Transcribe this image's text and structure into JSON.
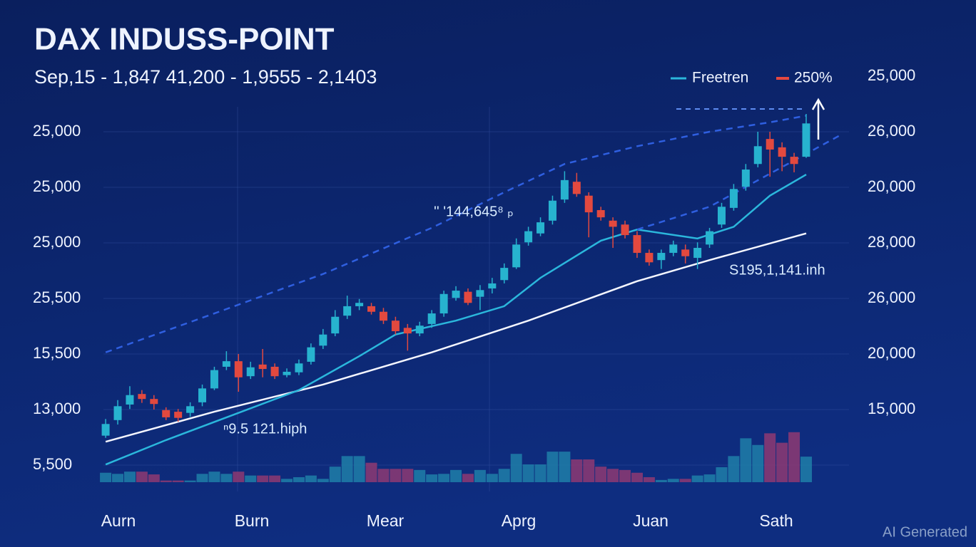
{
  "chart_data": {
    "type": "candlestick",
    "title": "DAX INDUSS-POINT",
    "subtitle": "Sep,15 - 1,847 41,200 - 1,9555 - 2,1403",
    "ylim": [
      -0.5,
      7
    ],
    "y2lim": [
      -0.5,
      7
    ],
    "xlim": [
      -0.3,
      61.25
    ],
    "yticks": [
      {
        "value": 6,
        "label": "25,000"
      },
      {
        "value": 5,
        "label": "25,000"
      },
      {
        "value": 4,
        "label": "25,000"
      },
      {
        "value": 3,
        "label": "25,500"
      },
      {
        "value": 2,
        "label": "15,500"
      },
      {
        "value": 1,
        "label": "13,000"
      },
      {
        "value": 0,
        "label": "5,500"
      }
    ],
    "y2ticks": [
      {
        "value": 7,
        "label": "25,000"
      },
      {
        "value": 6,
        "label": "26,000"
      },
      {
        "value": 5,
        "label": "20,000"
      },
      {
        "value": 4,
        "label": "28,000"
      },
      {
        "value": 3,
        "label": "26,000"
      },
      {
        "value": 2,
        "label": "20,000"
      },
      {
        "value": 1,
        "label": "15,000"
      }
    ],
    "grid": true,
    "x_labels": [
      "Aurn",
      "Burn",
      "Mear",
      "Aprg",
      "Juan",
      "Sath"
    ],
    "legend": [
      {
        "label": "Freetren",
        "color": "#2bb7dc"
      },
      {
        "label": "250%",
        "color": "#e5483f"
      }
    ],
    "up_color": "#27b3cf",
    "down_color": "#e2493f",
    "candles": {
      "open": [
        0.53,
        0.81,
        1.09,
        1.28,
        1.19,
        0.99,
        0.96,
        0.94,
        1.13,
        1.38,
        1.77,
        1.87,
        1.6,
        1.81,
        1.77,
        1.62,
        1.67,
        1.86,
        2.15,
        2.37,
        2.69,
        2.86,
        2.86,
        2.76,
        2.6,
        2.47,
        2.37,
        2.54,
        2.73,
        3.01,
        3.12,
        3.03,
        3.18,
        3.33,
        3.56,
        4.01,
        4.17,
        4.4,
        4.78,
        5.1,
        4.85,
        4.59,
        4.4,
        4.33,
        4.14,
        3.82,
        3.69,
        3.82,
        3.88,
        3.73,
        3.97,
        4.33,
        4.63,
        5.01,
        5.42,
        5.87,
        5.72,
        5.55,
        5.55
      ],
      "high": [
        0.83,
        1.17,
        1.42,
        1.35,
        1.26,
        1.04,
        1.01,
        1.13,
        1.45,
        1.77,
        2.05,
        2.0,
        1.86,
        2.09,
        1.83,
        1.74,
        1.9,
        2.19,
        2.45,
        2.79,
        3.05,
        2.99,
        2.92,
        2.83,
        2.67,
        2.54,
        2.58,
        2.79,
        3.14,
        3.22,
        3.18,
        3.24,
        3.37,
        3.63,
        4.08,
        4.29,
        4.46,
        4.85,
        5.29,
        5.26,
        4.91,
        4.65,
        4.46,
        4.4,
        4.21,
        3.88,
        3.88,
        4.04,
        3.97,
        4.01,
        4.27,
        4.72,
        5.06,
        5.42,
        6.0,
        6.0,
        5.81,
        5.62,
        6.32
      ],
      "low": [
        0.49,
        0.73,
        1.01,
        1.12,
        1.0,
        0.81,
        0.78,
        0.87,
        1.06,
        1.35,
        1.71,
        1.32,
        1.55,
        1.58,
        1.55,
        1.58,
        1.62,
        1.81,
        2.09,
        2.32,
        2.63,
        2.79,
        2.71,
        2.54,
        2.35,
        2.06,
        2.32,
        2.47,
        2.67,
        2.96,
        2.88,
        2.79,
        3.09,
        3.27,
        3.53,
        3.95,
        4.12,
        4.33,
        4.72,
        4.83,
        4.1,
        4.4,
        3.91,
        4.08,
        3.73,
        3.59,
        3.53,
        3.76,
        3.63,
        3.53,
        3.91,
        4.27,
        4.58,
        4.94,
        5.36,
        5.19,
        5.29,
        5.27,
        5.53
      ],
      "close": [
        0.74,
        1.06,
        1.26,
        1.19,
        1.1,
        0.86,
        0.85,
        1.06,
        1.38,
        1.71,
        1.87,
        1.58,
        1.76,
        1.73,
        1.6,
        1.68,
        1.83,
        2.12,
        2.35,
        2.67,
        2.86,
        2.92,
        2.76,
        2.6,
        2.41,
        2.37,
        2.51,
        2.73,
        3.08,
        3.14,
        2.92,
        3.15,
        3.27,
        3.55,
        3.97,
        4.21,
        4.37,
        4.76,
        5.13,
        4.88,
        4.55,
        4.46,
        4.29,
        4.14,
        3.82,
        3.65,
        3.82,
        3.97,
        3.76,
        3.91,
        4.21,
        4.65,
        4.97,
        5.32,
        5.74,
        5.68,
        5.55,
        5.42,
        6.15
      ]
    },
    "volume": {
      "values": [
        0.17,
        0.15,
        0.19,
        0.19,
        0.14,
        0.03,
        0.03,
        0.03,
        0.15,
        0.19,
        0.15,
        0.19,
        0.12,
        0.12,
        0.12,
        0.06,
        0.09,
        0.12,
        0.06,
        0.28,
        0.47,
        0.47,
        0.35,
        0.24,
        0.24,
        0.24,
        0.22,
        0.14,
        0.15,
        0.22,
        0.15,
        0.22,
        0.15,
        0.24,
        0.51,
        0.32,
        0.32,
        0.55,
        0.55,
        0.41,
        0.41,
        0.28,
        0.24,
        0.22,
        0.17,
        0.09,
        0.04,
        0.06,
        0.06,
        0.12,
        0.14,
        0.27,
        0.47,
        0.79,
        0.67,
        0.88,
        0.71,
        0.9,
        0.46
      ],
      "up_color": "#1e7fa8",
      "down_color": "#8e3a72"
    },
    "lines": [
      {
        "x": [
          0,
          9,
          18,
          27,
          35,
          44,
          50,
          58
        ],
        "values": [
          0.42,
          0.96,
          1.45,
          2.03,
          2.6,
          3.31,
          3.69,
          4.17
        ],
        "color": "#f4f6ff",
        "dash": false
      },
      {
        "x": [
          0,
          5,
          11,
          16,
          21,
          24,
          29,
          33,
          36,
          41,
          44,
          49,
          52,
          55,
          58
        ],
        "values": [
          0.01,
          0.45,
          0.94,
          1.35,
          1.96,
          2.35,
          2.6,
          2.86,
          3.37,
          4.04,
          4.24,
          4.08,
          4.29,
          4.85,
          5.23
        ],
        "color": "#2bb7dc",
        "dash": false
      },
      {
        "x": [
          0,
          9,
          18,
          27,
          33,
          38,
          44,
          50,
          55,
          58
        ],
        "values": [
          2.03,
          2.73,
          3.44,
          4.27,
          4.91,
          5.42,
          5.74,
          6.0,
          6.17,
          6.29
        ],
        "color": "#2f5fe0",
        "dash": true
      },
      {
        "x": [
          44,
          50,
          61
        ],
        "values": [
          4.24,
          4.65,
          5.96
        ],
        "color": "#2f5fe0",
        "dash": true
      }
    ],
    "annotations": [
      "'' '144,645⁸ ₚ",
      "S195,1,141.inh",
      "ⁿ9.5 121.hiph"
    ],
    "watermark": "AI Generated"
  }
}
